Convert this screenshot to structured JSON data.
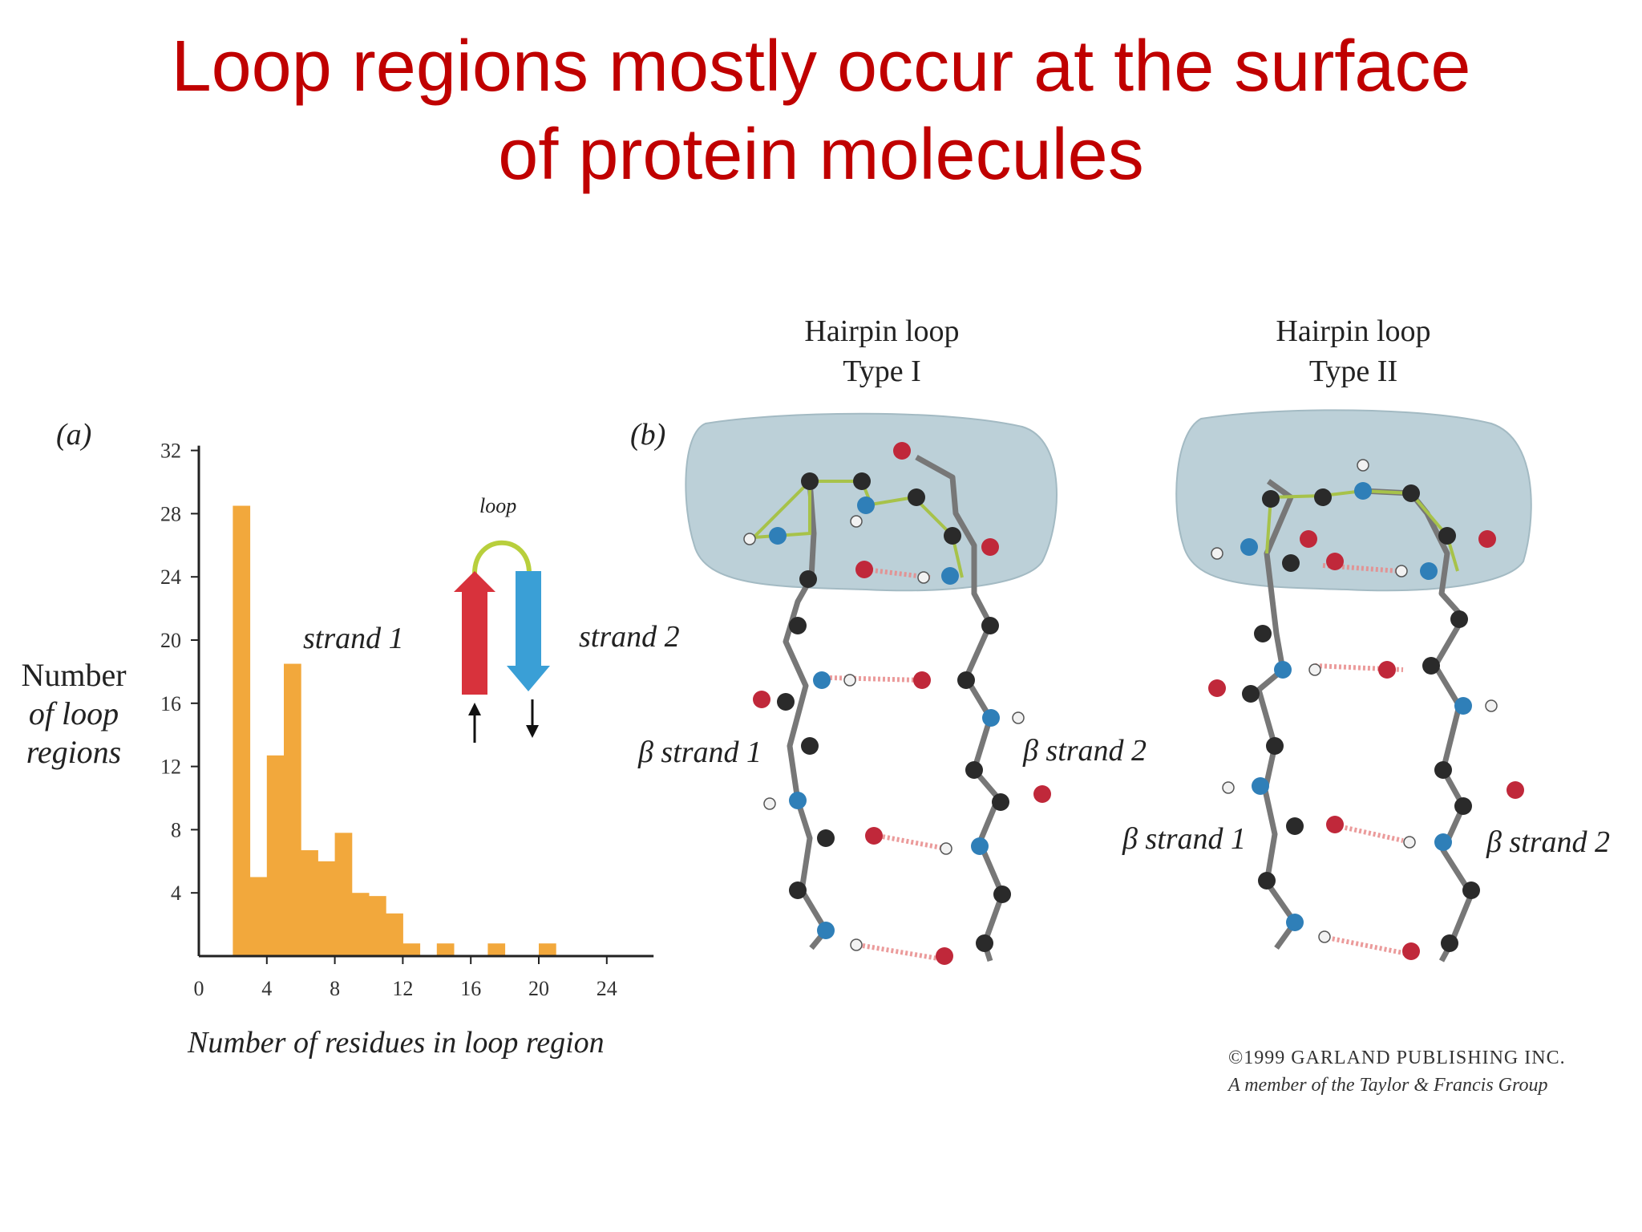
{
  "slide": {
    "title_line1": "Loop regions mostly occur at the surface",
    "title_line2": "of protein molecules"
  },
  "panel_a": {
    "label": "(a)",
    "inset": {
      "loop_label": "loop",
      "strand1_label": "strand 1",
      "strand2_label": "strand 2",
      "strand1_color": "#d8323c",
      "strand2_color": "#3a9fd6"
    }
  },
  "panel_b": {
    "label": "(b)",
    "type1": {
      "title_line1": "Hairpin loop",
      "title_line2": "Type I",
      "strand1_label": "β strand 1",
      "strand2_label": "β strand 2"
    },
    "type2": {
      "title_line1": "Hairpin loop",
      "title_line2": "Type II",
      "strand1_label": "β strand 1",
      "strand2_label": "β strand 2"
    },
    "colors": {
      "carbon": "#2a2a2a",
      "oxygen": "#c0283a",
      "nitrogen": "#2f7fb8",
      "hydrogen": "#f2f2f2",
      "loop_highlight": "#a7c24a",
      "surface": "#b9ced6"
    }
  },
  "copyright": {
    "line1": "©1999 GARLAND PUBLISHING INC.",
    "line2": "A member of the Taylor & Francis Group"
  },
  "chart_data": {
    "type": "bar",
    "title": "",
    "xlabel": "Number of residues in loop region",
    "ylabel": "Number of loop regions",
    "ylabel_lines": [
      "Number",
      "of loop",
      "regions"
    ],
    "xlim": [
      0,
      26
    ],
    "ylim": [
      0,
      32
    ],
    "xticks": [
      0,
      4,
      8,
      12,
      16,
      20,
      24
    ],
    "yticks": [
      4,
      8,
      12,
      16,
      20,
      24,
      28,
      32
    ],
    "bar_color": "#f2a83c",
    "bin_width": 1,
    "bins": [
      {
        "x": 2,
        "value": 28.5
      },
      {
        "x": 3,
        "value": 5
      },
      {
        "x": 4,
        "value": 12.7
      },
      {
        "x": 5,
        "value": 18.5
      },
      {
        "x": 6,
        "value": 6.7
      },
      {
        "x": 7,
        "value": 6
      },
      {
        "x": 8,
        "value": 7.8
      },
      {
        "x": 9,
        "value": 4
      },
      {
        "x": 10,
        "value": 3.8
      },
      {
        "x": 11,
        "value": 2.7
      },
      {
        "x": 12,
        "value": 0.8
      },
      {
        "x": 14,
        "value": 0.8
      },
      {
        "x": 17,
        "value": 0.8
      },
      {
        "x": 20,
        "value": 0.8
      }
    ]
  }
}
